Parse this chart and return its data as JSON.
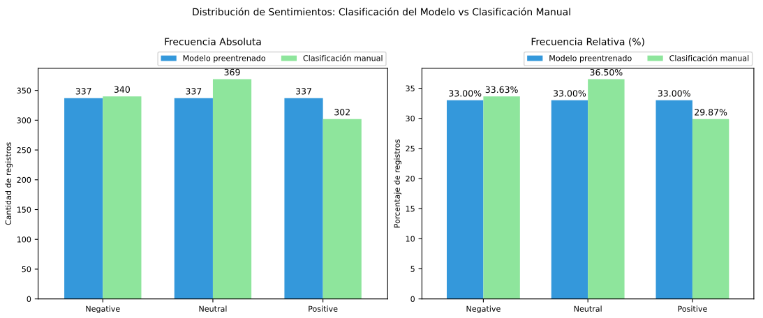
{
  "chart_data": [
    {
      "type": "bar",
      "title": "Frecuencia Absoluta",
      "annotations": [
        "Distribución de Sentimientos: Clasificación del Modelo vs Clasificación Manual"
      ],
      "ylabel": "Cantidad de registros",
      "categories": [
        "Negative",
        "Neutral",
        "Positive"
      ],
      "series": [
        {
          "name": "Modelo preentrenado",
          "color": "#3498db",
          "values": [
            337,
            337,
            337
          ]
        },
        {
          "name": "Clasificación manual",
          "color": "#8ee59c",
          "values": [
            340,
            369,
            302
          ]
        }
      ],
      "ylim": [
        0,
        387
      ],
      "yticks": [
        0,
        50,
        100,
        150,
        200,
        250,
        300,
        350
      ],
      "data_labels": true,
      "legend": "top right",
      "grid": false
    },
    {
      "type": "bar",
      "title": "Frecuencia Relativa (%)",
      "ylabel": "Porcentaje de registros",
      "categories": [
        "Negative",
        "Neutral",
        "Positive"
      ],
      "series": [
        {
          "name": "Modelo preentrenado",
          "color": "#3498db",
          "values": [
            33.0,
            33.0,
            33.0
          ],
          "value_labels": [
            "33.00%",
            "33.00%",
            "33.00%"
          ]
        },
        {
          "name": "Clasificación manual",
          "color": "#8ee59c",
          "values": [
            33.63,
            36.5,
            29.87
          ],
          "value_labels": [
            "33.63%",
            "36.50%",
            "29.87%"
          ]
        }
      ],
      "ylim": [
        0,
        38.3
      ],
      "yticks": [
        0,
        5,
        10,
        15,
        20,
        25,
        30,
        35
      ],
      "legend": "top right",
      "grid": false
    }
  ]
}
